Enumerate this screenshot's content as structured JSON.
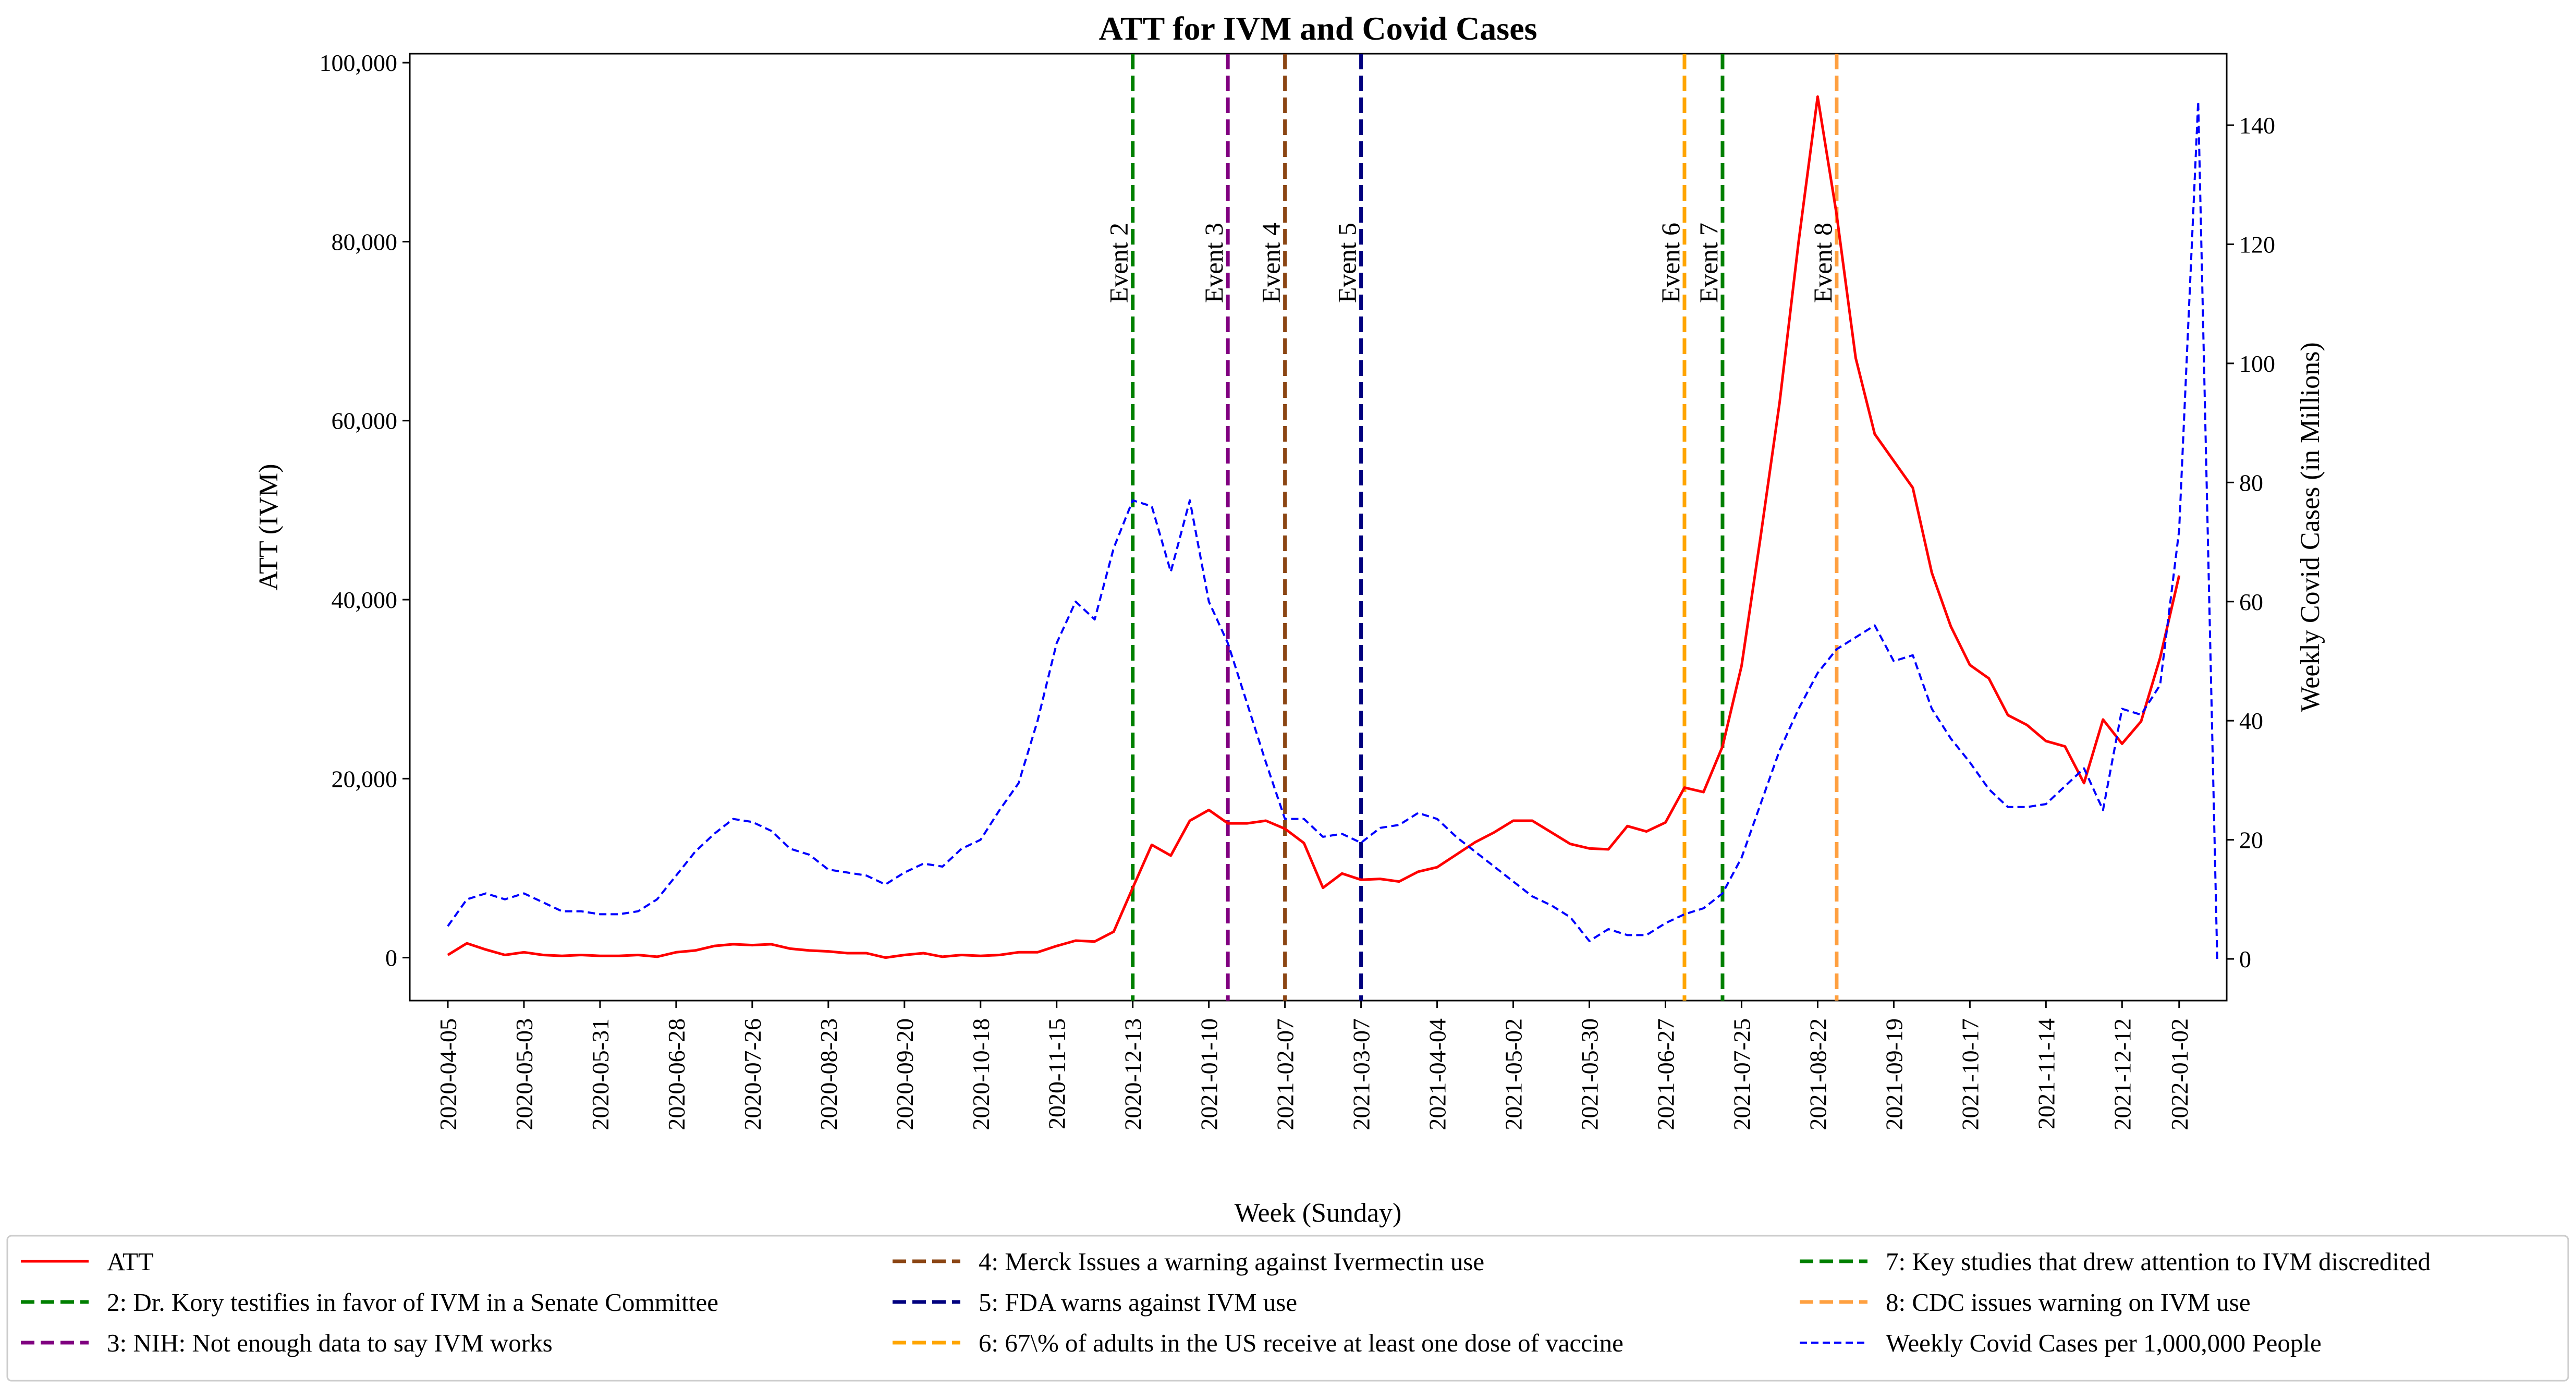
{
  "chart_data": {
    "type": "line",
    "title": "ATT for IVM and Covid Cases",
    "xlabel": "Week (Sunday)",
    "ylabel_left": "ATT (IVM)",
    "ylabel_right": "Weekly Covid Cases (in Millions)",
    "ylim_left": [
      -4800,
      101000
    ],
    "ylim_right": [
      -7,
      152
    ],
    "left_ticks": [
      {
        "value": 0,
        "label": "0"
      },
      {
        "value": 20000,
        "label": "20,000"
      },
      {
        "value": 40000,
        "label": "40,000"
      },
      {
        "value": 60000,
        "label": "60,000"
      },
      {
        "value": 80000,
        "label": "80,000"
      },
      {
        "value": 100000,
        "label": "100,000"
      }
    ],
    "right_ticks": [
      {
        "value": 0,
        "label": "0"
      },
      {
        "value": 20,
        "label": "20"
      },
      {
        "value": 40,
        "label": "40"
      },
      {
        "value": 60,
        "label": "60"
      },
      {
        "value": 80,
        "label": "80"
      },
      {
        "value": 100,
        "label": "100"
      },
      {
        "value": 120,
        "label": "120"
      },
      {
        "value": 140,
        "label": "140"
      }
    ],
    "x_ticks": [
      {
        "week": 0,
        "label": "2020-04-05"
      },
      {
        "week": 4,
        "label": "2020-05-03"
      },
      {
        "week": 8,
        "label": "2020-05-31"
      },
      {
        "week": 12,
        "label": "2020-06-28"
      },
      {
        "week": 16,
        "label": "2020-07-26"
      },
      {
        "week": 20,
        "label": "2020-08-23"
      },
      {
        "week": 24,
        "label": "2020-09-20"
      },
      {
        "week": 28,
        "label": "2020-10-18"
      },
      {
        "week": 32,
        "label": "2020-11-15"
      },
      {
        "week": 36,
        "label": "2020-12-13"
      },
      {
        "week": 40,
        "label": "2021-01-10"
      },
      {
        "week": 44,
        "label": "2021-02-07"
      },
      {
        "week": 48,
        "label": "2021-03-07"
      },
      {
        "week": 52,
        "label": "2021-04-04"
      },
      {
        "week": 56,
        "label": "2021-05-02"
      },
      {
        "week": 60,
        "label": "2021-05-30"
      },
      {
        "week": 64,
        "label": "2021-06-27"
      },
      {
        "week": 68,
        "label": "2021-07-25"
      },
      {
        "week": 72,
        "label": "2021-08-22"
      },
      {
        "week": 76,
        "label": "2021-09-19"
      },
      {
        "week": 80,
        "label": "2021-10-17"
      },
      {
        "week": 84,
        "label": "2021-11-14"
      },
      {
        "week": 88,
        "label": "2021-12-12"
      },
      {
        "week": 91,
        "label": "2022-01-02"
      }
    ],
    "x_range": [
      -2,
      93.5
    ],
    "series": [
      {
        "name": "ATT",
        "axis": "left",
        "color": "#ff0000",
        "style": "solid",
        "values": [
          300,
          1600,
          900,
          300,
          600,
          300,
          200,
          300,
          200,
          200,
          300,
          100,
          600,
          800,
          1300,
          1500,
          1400,
          1500,
          1000,
          800,
          700,
          500,
          500,
          0,
          300,
          500,
          100,
          300,
          200,
          300,
          600,
          600,
          1300,
          1900,
          1800,
          2900,
          7800,
          12600,
          11400,
          15300,
          16500,
          15000,
          15000,
          15300,
          14400,
          12800,
          7800,
          9400,
          8700,
          8800,
          8500,
          9600,
          10100,
          11500,
          12900,
          14000,
          15300,
          15300,
          14000,
          12700,
          12200,
          12100,
          14700,
          14100,
          15100,
          19000,
          18500,
          23600,
          32600,
          47000,
          62000,
          80000,
          96200,
          83000,
          67000,
          58500,
          55500,
          52500,
          43000,
          37000,
          32700,
          31200,
          27100,
          26000,
          24200,
          23600,
          19500,
          26600,
          23900,
          26400,
          33500,
          42700
        ]
      },
      {
        "name": "Weekly Covid Cases per 1,000,000 People",
        "axis": "right",
        "color": "#0000ff",
        "style": "dashed",
        "values": [
          5.5,
          10,
          11,
          10,
          11,
          9.5,
          8,
          8,
          7.5,
          7.5,
          8,
          10,
          14,
          18,
          21,
          23.5,
          23,
          21.5,
          18.5,
          17.5,
          15,
          14.5,
          14,
          12.5,
          14.5,
          16,
          15.5,
          18.5,
          20,
          25,
          29.5,
          40,
          53,
          60,
          57,
          69,
          77,
          76,
          65,
          77,
          60,
          53,
          43,
          33,
          23.5,
          23.5,
          20.5,
          21,
          19.5,
          22,
          22.5,
          24.5,
          23.5,
          20.5,
          18,
          15.5,
          13,
          10.5,
          9,
          7,
          3,
          5,
          4,
          4,
          6,
          7.5,
          8.5,
          11,
          17,
          26,
          35,
          42,
          48,
          52,
          54,
          56,
          50,
          51,
          42,
          37,
          33,
          28.5,
          25.5,
          25.5,
          26,
          29,
          32,
          25,
          42,
          41,
          46,
          72,
          144,
          0
        ]
      }
    ],
    "events": [
      {
        "name": "Event 2",
        "week": 36,
        "color": "#007f00"
      },
      {
        "name": "Event 3",
        "week": 41,
        "color": "#800080"
      },
      {
        "name": "Event 4",
        "week": 44,
        "color": "#8b4513"
      },
      {
        "name": "Event 5",
        "week": 48,
        "color": "#00007f"
      },
      {
        "name": "Event 6",
        "week": 65,
        "color": "#ffa500"
      },
      {
        "name": "Event 7",
        "week": 67,
        "color": "#008000"
      },
      {
        "name": "Event 8",
        "week": 73,
        "color": "#ffa040"
      }
    ],
    "legend": {
      "placement": "bottom",
      "items": [
        {
          "label": "ATT",
          "color": "#ff0000",
          "style": "solid"
        },
        {
          "label": "2: Dr. Kory testifies in favor of IVM in a Senate Committee",
          "color": "#007f00",
          "style": "dashed"
        },
        {
          "label": "3: NIH: Not enough data to say IVM works",
          "color": "#800080",
          "style": "dashed"
        },
        {
          "label": "4: Merck Issues a warning against Ivermectin use",
          "color": "#8b4513",
          "style": "dashed"
        },
        {
          "label": "5: FDA warns against IVM use",
          "color": "#00007f",
          "style": "dashed"
        },
        {
          "label": "6: 67\\% of adults in the US receive at least one dose of vaccine",
          "color": "#ffa500",
          "style": "dashed"
        },
        {
          "label": "7: Key studies that drew attention to IVM discredited",
          "color": "#008000",
          "style": "dashed"
        },
        {
          "label": "8: CDC issues warning on IVM use",
          "color": "#ffa040",
          "style": "dashed"
        },
        {
          "label": "Weekly Covid Cases per 1,000,000 People",
          "color": "#0000ff",
          "style": "dotted-dash"
        }
      ]
    }
  }
}
